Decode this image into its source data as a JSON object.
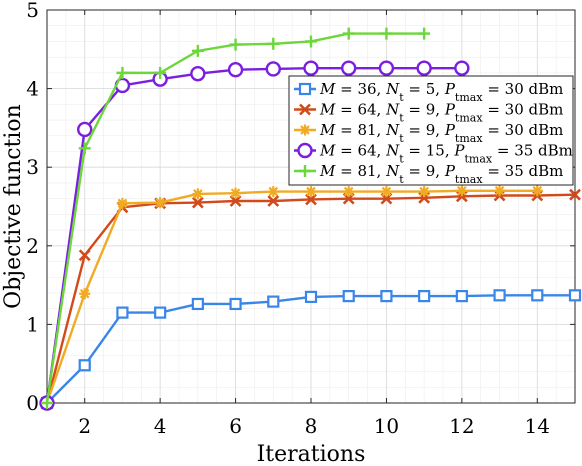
{
  "chart_data": {
    "type": "line",
    "xlabel": "Iterations",
    "ylabel": "Objective function",
    "xlim": [
      1,
      15
    ],
    "ylim": [
      0,
      5
    ],
    "xticks": [
      2,
      4,
      6,
      8,
      10,
      12,
      14
    ],
    "xtick_labels": [
      "2",
      "4",
      "6",
      "8",
      "10",
      "12",
      "14"
    ],
    "yticks": [
      0,
      1,
      2,
      3,
      4,
      5
    ],
    "ytick_labels": [
      "0",
      "1",
      "2",
      "3",
      "4",
      "5"
    ],
    "grid": true,
    "legend_position": "upper-right",
    "series": [
      {
        "name": "M = 36, Nt = 5, Ptmax = 30 dBm",
        "legend": {
          "a": "M",
          "b": " = 36, ",
          "c": "N",
          "d": "t",
          "e": " = 5, ",
          "f": "P",
          "g": "tmax",
          "h": " = 30 dBm"
        },
        "color": "#3a86e8",
        "marker": "square",
        "x": [
          1,
          2,
          3,
          4,
          5,
          6,
          7,
          8,
          9,
          10,
          11,
          12,
          13,
          14,
          15
        ],
        "y": [
          0,
          0.48,
          1.15,
          1.15,
          1.26,
          1.26,
          1.29,
          1.35,
          1.36,
          1.36,
          1.36,
          1.36,
          1.37,
          1.37,
          1.37
        ]
      },
      {
        "name": "M = 64, Nt = 9, Ptmax = 30 dBm",
        "legend": {
          "a": "M",
          "b": " = 64, ",
          "c": "N",
          "d": "t",
          "e": " = 9, ",
          "f": "P",
          "g": "tmax",
          "h": " = 30 dBm"
        },
        "color": "#d24a1b",
        "marker": "x",
        "x": [
          1,
          2,
          3,
          4,
          5,
          6,
          7,
          8,
          9,
          10,
          11,
          12,
          13,
          14,
          15
        ],
        "y": [
          0,
          1.88,
          2.49,
          2.54,
          2.55,
          2.57,
          2.57,
          2.59,
          2.6,
          2.6,
          2.61,
          2.63,
          2.64,
          2.64,
          2.65
        ]
      },
      {
        "name": "M = 81, Nt = 9, Ptmax = 30 dBm",
        "legend": {
          "a": "M",
          "b": " = 81, ",
          "c": "N",
          "d": "t",
          "e": " = 9, ",
          "f": "P",
          "g": "tmax",
          "h": " = 30 dBm"
        },
        "color": "#f0ab24",
        "marker": "asterisk",
        "x": [
          1,
          2,
          3,
          4,
          5,
          6,
          7,
          8,
          9,
          10,
          11,
          12,
          13,
          14
        ],
        "y": [
          0,
          1.39,
          2.54,
          2.55,
          2.66,
          2.67,
          2.69,
          2.69,
          2.69,
          2.69,
          2.69,
          2.7,
          2.7,
          2.7
        ]
      },
      {
        "name": "M = 64, Nt = 15, Ptmax = 35 dBm",
        "legend": {
          "a": "M",
          "b": " = 64, ",
          "c": "N",
          "d": "t",
          "e": " = 15, ",
          "f": "P",
          "g": "tmax",
          "h": " = 35 dBm"
        },
        "color": "#7a1ee0",
        "marker": "circle",
        "x": [
          1,
          2,
          3,
          4,
          5,
          6,
          7,
          8,
          9,
          10,
          11,
          12
        ],
        "y": [
          0,
          3.48,
          4.04,
          4.12,
          4.19,
          4.24,
          4.25,
          4.26,
          4.26,
          4.26,
          4.26,
          4.26
        ]
      },
      {
        "name": "M = 81, Nt = 9, Ptmax = 35 dBm",
        "legend": {
          "a": "M",
          "b": " = 81, ",
          "c": "N",
          "d": "t",
          "e": " = 9, ",
          "f": "P",
          "g": "tmax",
          "h": " = 35 dBm"
        },
        "color": "#6cd63a",
        "marker": "plus",
        "x": [
          1,
          2,
          3,
          4,
          5,
          6,
          7,
          8,
          9,
          10,
          11
        ],
        "y": [
          0,
          3.24,
          4.2,
          4.2,
          4.48,
          4.56,
          4.57,
          4.6,
          4.7,
          4.7,
          4.7
        ]
      }
    ]
  }
}
